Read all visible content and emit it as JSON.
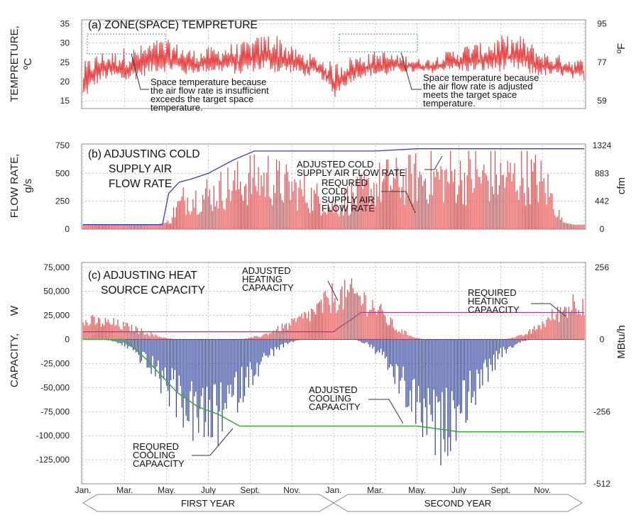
{
  "colors": {
    "red": "#e84848",
    "blue": "#2b3f9a",
    "magenta": "#b03a8a",
    "green": "#3aa83a",
    "adjusted_flow": "#3d3db0",
    "grid": "#b9b9b9",
    "dotted_box": "#6fa8d6"
  },
  "months": [
    "Jan.",
    "Mar.",
    "May.",
    "July",
    "Sept.",
    "Nov.",
    "Jan.",
    "Mar.",
    "May.",
    "July",
    "Sept.",
    "Nov."
  ],
  "years": [
    "FIRST YEAR",
    "SECOND YEAR"
  ],
  "chart_data": [
    {
      "type": "line",
      "title": "(a) ZONE(SPACE) TEMPRETURE",
      "ylabel": "TEMPRETURE, ºC",
      "ylabel_parts": [
        "TEMPRETURE,",
        "ºC"
      ],
      "y2label": "ºF",
      "ylim": [
        13,
        36
      ],
      "yticks": [
        15,
        20,
        25,
        30,
        35
      ],
      "y2ticks": [
        {
          "label": "95",
          "value": 35
        },
        {
          "label": "77",
          "value": 25
        },
        {
          "label": "59",
          "value": 15
        }
      ],
      "grid": true,
      "series": [
        {
          "x": [
            0,
            0.5,
            1,
            1.5,
            2,
            2.5,
            3,
            3.5,
            4,
            4.5,
            5,
            5.5,
            6,
            6.5,
            7,
            7.5,
            8,
            8.5,
            9,
            9.5,
            10,
            10.5,
            11,
            11.5,
            12,
            12.5,
            13,
            13.5,
            14,
            14.5,
            15,
            15.5,
            16,
            16.5,
            17,
            17.5,
            18,
            18.5,
            19,
            19.5,
            20,
            20.5,
            21,
            21.5,
            22,
            22.5,
            23,
            23.5,
            24
          ],
          "low": [
            14,
            18,
            20,
            20,
            19,
            20,
            21,
            22,
            22,
            22,
            21,
            22,
            22,
            22,
            22,
            21,
            22,
            22,
            22,
            21,
            22,
            21,
            21,
            20,
            15,
            18,
            20,
            21,
            21,
            21,
            22,
            22,
            22,
            22,
            22,
            23,
            22,
            22,
            22,
            22,
            22,
            22,
            22,
            21,
            21,
            21,
            21,
            20,
            20
          ],
          "high": [
            25,
            27,
            28,
            28,
            29,
            29,
            30,
            31,
            31,
            30,
            29,
            28,
            29,
            29,
            30,
            30,
            31,
            32,
            33,
            32,
            29,
            28,
            27,
            26,
            25,
            26,
            27,
            27,
            28,
            28,
            27,
            27,
            26,
            26,
            27,
            28,
            29,
            30,
            30,
            31,
            32,
            32,
            32,
            30,
            28,
            27,
            27,
            26,
            26
          ]
        }
      ],
      "annotations": [
        {
          "lines": [
            "Space temperature because",
            "the air flow rate is insufficient",
            "exceeds the target space",
            "temperature."
          ]
        },
        {
          "lines": [
            "Space temperature because",
            "the air flow rate is adjusted",
            "meets the target space",
            "temperature."
          ]
        }
      ]
    },
    {
      "type": "bar",
      "title_lines": [
        "(b) ADJUSTING COLD",
        "SUPPLY AIR",
        "FLOW RATE"
      ],
      "ylabel": "FLOW RATE, g/s",
      "ylabel_parts": [
        "FLOW RATE,",
        "g/s"
      ],
      "y2label": "cfm",
      "ylim": [
        0,
        750
      ],
      "yticks": [
        0,
        250,
        500,
        750
      ],
      "y2ticks": [
        {
          "label": "0",
          "value": 0
        },
        {
          "label": "442",
          "value": 250
        },
        {
          "label": "883",
          "value": 500
        },
        {
          "label": "1324",
          "value": 750
        }
      ],
      "grid": true,
      "required": {
        "x": [
          0,
          0.5,
          1,
          1.5,
          2,
          2.5,
          3,
          3.5,
          4,
          4.5,
          5,
          5.5,
          6,
          6.5,
          7,
          7.5,
          8,
          8.5,
          9,
          9.5,
          10,
          10.5,
          11,
          11.5,
          12,
          12.5,
          13,
          13.5,
          14,
          14.5,
          15,
          15.5,
          16,
          16.5,
          17,
          17.5,
          18,
          18.5,
          19,
          19.5,
          20,
          20.5,
          21,
          21.5,
          22,
          22.5,
          23,
          23.5,
          24
        ],
        "values": [
          40,
          40,
          40,
          40,
          40,
          40,
          40,
          40,
          60,
          300,
          420,
          430,
          450,
          500,
          560,
          620,
          660,
          680,
          650,
          600,
          560,
          500,
          430,
          380,
          300,
          350,
          450,
          520,
          580,
          620,
          640,
          660,
          680,
          700,
          700,
          700,
          700,
          700,
          700,
          700,
          700,
          700,
          700,
          700,
          600,
          400,
          60,
          40,
          40
        ]
      },
      "adjusted": [
        [
          0,
          40
        ],
        [
          3.8,
          40
        ],
        [
          4.1,
          320
        ],
        [
          4.6,
          420
        ],
        [
          5.2,
          450
        ],
        [
          6,
          500
        ],
        [
          6.6,
          560
        ],
        [
          7.2,
          620
        ],
        [
          7.7,
          660
        ],
        [
          8.2,
          700
        ],
        [
          14,
          700
        ],
        [
          16,
          720
        ],
        [
          24,
          720
        ]
      ],
      "annotations": [
        {
          "lines": [
            "ADJUSTED COLD",
            "SUPPLY AIR FLOW RATE"
          ]
        },
        {
          "lines": [
            "REQURED",
            "COLD",
            "SUPPLY AIR",
            "FLOW RATE"
          ]
        }
      ]
    },
    {
      "type": "bar",
      "title_lines": [
        "(c) ADJUSTING HEAT",
        "SOURCE CAPACITY"
      ],
      "ylabel": "CAPACITY, W",
      "ylabel_parts": [
        "CAPACITY,",
        "W"
      ],
      "y2label": "MBtu/h",
      "ylim": [
        -150000,
        80000
      ],
      "yticks": [
        75000,
        50000,
        25000,
        0,
        -25000,
        -50000,
        -75000,
        -100000,
        -125000
      ],
      "ytick_labels": [
        "75,000",
        "50,000",
        "25,000",
        "0",
        "-25,000",
        "-50,000",
        "-75,000",
        "-100,000",
        "-125,000"
      ],
      "y2ticks": [
        {
          "label": "256",
          "value": 75000
        },
        {
          "label": "0",
          "value": 0
        },
        {
          "label": "-256",
          "value": -75000
        },
        {
          "label": "-512",
          "value": -150000
        }
      ],
      "grid": true,
      "heating": {
        "x": [
          0,
          0.5,
          1,
          1.5,
          2,
          2.5,
          3,
          3.5,
          4,
          4.5,
          5,
          5.5,
          6,
          6.5,
          7,
          7.5,
          8,
          8.5,
          9,
          9.5,
          10,
          10.5,
          11,
          11.5,
          12,
          12.5,
          13,
          13.5,
          14,
          14.5,
          15,
          15.5,
          16,
          16.5,
          17,
          17.5,
          18,
          18.5,
          19,
          19.5,
          20,
          20.5,
          21,
          21.5,
          22,
          22.5,
          23,
          23.5,
          24
        ],
        "values": [
          24000,
          25000,
          24000,
          22000,
          18000,
          14000,
          10000,
          5000,
          2000,
          0,
          0,
          0,
          0,
          0,
          0,
          0,
          2000,
          5000,
          10000,
          16000,
          22000,
          30000,
          38000,
          48000,
          60000,
          62000,
          64000,
          55000,
          45000,
          30000,
          15000,
          8000,
          2000,
          0,
          0,
          0,
          0,
          0,
          0,
          0,
          0,
          2000,
          5000,
          12000,
          22000,
          32000,
          42000,
          52000,
          55000
        ]
      },
      "cooling": {
        "x": [
          0,
          0.5,
          1,
          1.5,
          2,
          2.5,
          3,
          3.5,
          4,
          4.5,
          5,
          5.5,
          6,
          6.5,
          7,
          7.5,
          8,
          8.5,
          9,
          9.5,
          10,
          10.5,
          11,
          11.5,
          12,
          12.5,
          13,
          13.5,
          14,
          14.5,
          15,
          15.5,
          16,
          16.5,
          17,
          17.5,
          18,
          18.5,
          19,
          19.5,
          20,
          20.5,
          21,
          21.5,
          22,
          22.5,
          23,
          23.5,
          24
        ],
        "values": [
          0,
          0,
          0,
          -3000,
          -8000,
          -18000,
          -32000,
          -48000,
          -65000,
          -82000,
          -98000,
          -112000,
          -120000,
          -110000,
          -92000,
          -72000,
          -52000,
          -35000,
          -20000,
          -10000,
          -4000,
          0,
          0,
          0,
          0,
          0,
          0,
          -5000,
          -15000,
          -32000,
          -55000,
          -78000,
          -100000,
          -118000,
          -135000,
          -120000,
          -100000,
          -80000,
          -60000,
          -40000,
          -22000,
          -10000,
          -3000,
          0,
          0,
          0,
          0,
          0,
          0
        ]
      },
      "adjusted_heating": [
        [
          0,
          8000
        ],
        [
          12,
          8000
        ],
        [
          12.3,
          13000
        ],
        [
          12.8,
          20000
        ],
        [
          13.3,
          28000
        ],
        [
          24,
          28000
        ]
      ],
      "adjusted_cooling": [
        [
          0,
          0
        ],
        [
          2,
          0
        ],
        [
          3,
          -20000
        ],
        [
          4.5,
          -55000
        ],
        [
          5.5,
          -70000
        ],
        [
          6.5,
          -78000
        ],
        [
          7.5,
          -90000
        ],
        [
          16,
          -90000
        ],
        [
          18,
          -96000
        ],
        [
          24,
          -96000
        ]
      ],
      "annotations": [
        {
          "lines": [
            "ADJUSTED",
            "HEATING",
            "CAPAACITY"
          ]
        },
        {
          "lines": [
            "REQUIRED",
            "HEATING",
            "CAPAACITY"
          ]
        },
        {
          "lines": [
            "ADJUSTED",
            "COOLING",
            "CAPAACITY"
          ]
        },
        {
          "lines": [
            "REQURED",
            "COOLING",
            "CAPAACITY"
          ]
        }
      ]
    }
  ]
}
